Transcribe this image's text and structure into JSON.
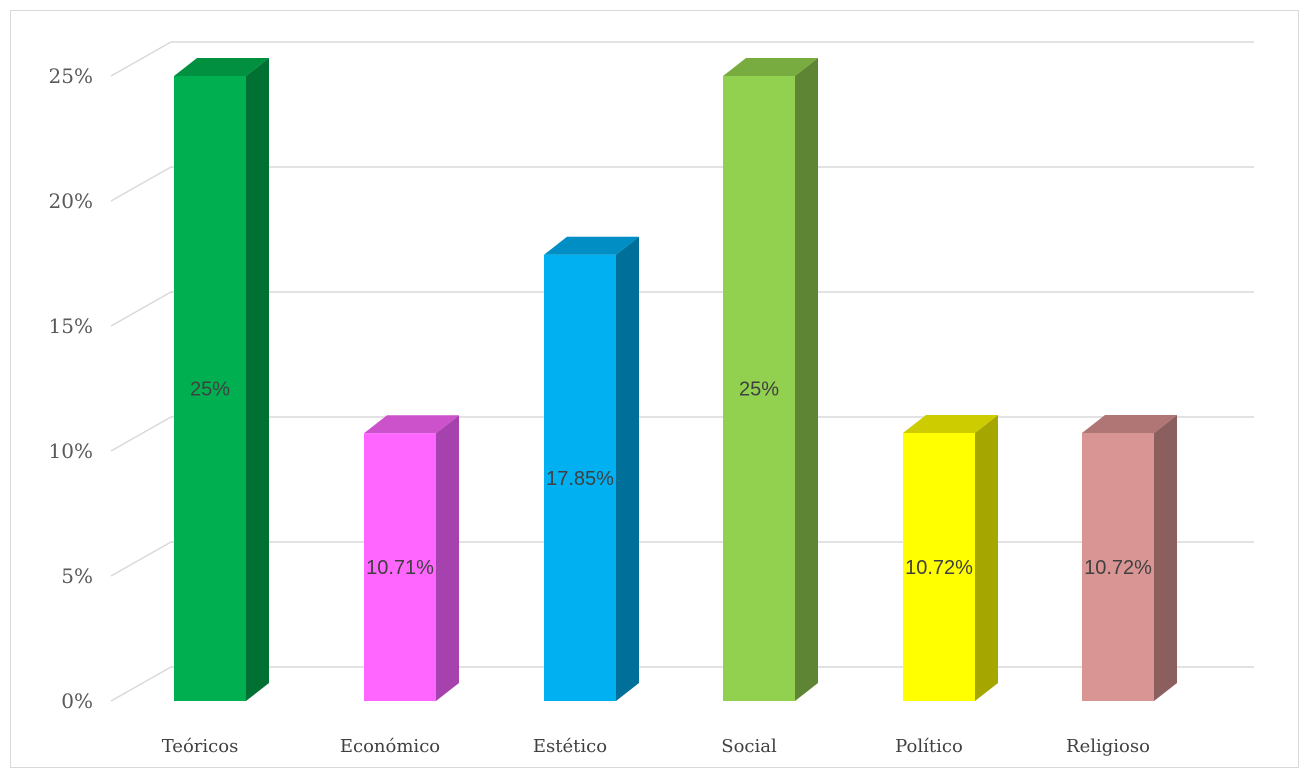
{
  "chart_data": {
    "type": "bar",
    "style": "3d-column",
    "categories": [
      "Teóricos",
      "Económico",
      "Estético",
      "Social",
      "Político",
      "Religioso"
    ],
    "values": [
      25,
      10.71,
      17.85,
      25,
      10.72,
      10.72
    ],
    "data_labels": [
      "25%",
      "10.71%",
      "17.85%",
      "25%",
      "10.72%",
      "10.72%"
    ],
    "y_ticks": [
      0,
      5,
      10,
      15,
      20,
      25
    ],
    "y_tick_labels": [
      "0%",
      "5%",
      "10%",
      "15%",
      "20%",
      "25%"
    ],
    "ylim": [
      0,
      25
    ],
    "grid": true,
    "legend": "none",
    "colors": [
      {
        "front": "#00b050",
        "side": "#007033",
        "top": "#00903f"
      },
      {
        "front": "#ff66ff",
        "side": "#a642ad",
        "top": "#cc52cc"
      },
      {
        "front": "#00b0f0",
        "side": "#006f9a",
        "top": "#008ec4"
      },
      {
        "front": "#92d050",
        "side": "#5e8534",
        "top": "#78ab40"
      },
      {
        "front": "#ffff00",
        "side": "#a6a600",
        "top": "#cccc00"
      },
      {
        "front": "#d99594",
        "side": "#8c5f5f",
        "top": "#b07676"
      }
    ]
  }
}
